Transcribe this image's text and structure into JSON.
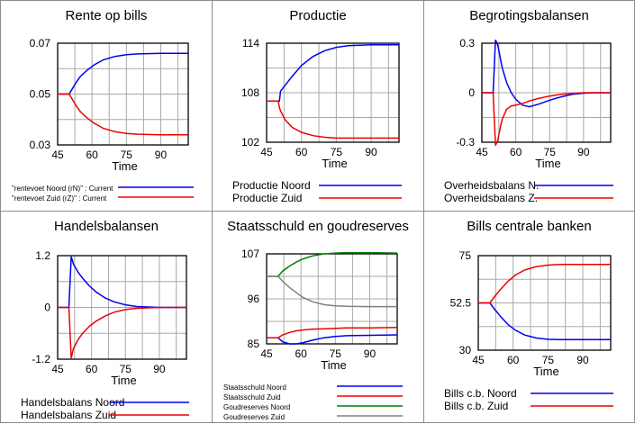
{
  "colors": {
    "blue": "#0000ee",
    "red": "#ee0000",
    "green": "#008000",
    "gray": "#808080",
    "grid": "#a8a8a8"
  },
  "chart_data": [
    {
      "type": "line",
      "title": "Rente op bills",
      "xlabel": "Time",
      "xlim": [
        45,
        102
      ],
      "xticks": [
        "45",
        "60",
        "75",
        "90"
      ],
      "ylim": [
        0.03,
        0.07
      ],
      "yticks": [
        "0.03",
        "0.05",
        "0.07"
      ],
      "legend_size": "small",
      "x": [
        45,
        50,
        51,
        53,
        55,
        58,
        61,
        65,
        70,
        75,
        80,
        90,
        102
      ],
      "series": [
        {
          "name": "\"rentevoet Noord (rN)\" : Current",
          "color": "blue",
          "values": [
            0.05,
            0.05,
            0.0515,
            0.0545,
            0.057,
            0.0595,
            0.0615,
            0.0635,
            0.0648,
            0.0655,
            0.0658,
            0.066,
            0.066
          ]
        },
        {
          "name": "\"rentevoet Zuid (rZ)\" : Current",
          "color": "red",
          "values": [
            0.05,
            0.05,
            0.0485,
            0.0455,
            0.043,
            0.0405,
            0.0385,
            0.0365,
            0.0352,
            0.0345,
            0.0342,
            0.034,
            0.034
          ]
        }
      ]
    },
    {
      "type": "line",
      "title": "Productie",
      "xlabel": "Time",
      "xlim": [
        45,
        102
      ],
      "xticks": [
        "45",
        "60",
        "75",
        "90"
      ],
      "ylim": [
        102,
        114
      ],
      "yticks": [
        "102",
        "108",
        "114"
      ],
      "legend_size": "normal",
      "x": [
        45,
        50,
        50.5,
        51,
        53,
        56,
        60,
        65,
        70,
        75,
        80,
        90,
        102
      ],
      "series": [
        {
          "name": "Productie Noord",
          "color": "blue",
          "values": [
            107,
            107,
            107,
            108.2,
            108.9,
            110,
            111.3,
            112.4,
            113.1,
            113.5,
            113.7,
            113.8,
            113.8
          ]
        },
        {
          "name": "Productie Zuid",
          "color": "red",
          "values": [
            107,
            107,
            106.2,
            105.8,
            104.7,
            103.8,
            103.2,
            102.8,
            102.6,
            102.5,
            102.5,
            102.5,
            102.5
          ]
        }
      ]
    },
    {
      "type": "line",
      "title": "Begrotingsbalansen",
      "xlabel": "Time",
      "xlim": [
        45,
        102
      ],
      "xticks": [
        "45",
        "60",
        "75",
        "90"
      ],
      "ylim": [
        -0.3,
        0.3
      ],
      "yticks": [
        "-0.3",
        "0",
        "0.3"
      ],
      "legend_size": "normal",
      "x": [
        45,
        50,
        51,
        52,
        53,
        54,
        56,
        58,
        60,
        63,
        66,
        70,
        75,
        80,
        85,
        90,
        95,
        102
      ],
      "series": [
        {
          "name": "Overheidsbalans N.",
          "color": "blue",
          "values": [
            0,
            0,
            0.32,
            0.29,
            0.22,
            0.15,
            0.06,
            0.0,
            -0.04,
            -0.075,
            -0.085,
            -0.07,
            -0.045,
            -0.025,
            -0.01,
            -0.003,
            0,
            0
          ]
        },
        {
          "name": "Overheidsbalans Z.",
          "color": "red",
          "values": [
            0,
            0,
            -0.32,
            -0.29,
            -0.22,
            -0.16,
            -0.1,
            -0.08,
            -0.075,
            -0.065,
            -0.05,
            -0.035,
            -0.02,
            -0.01,
            -0.004,
            0,
            0,
            0
          ]
        }
      ]
    },
    {
      "type": "line",
      "title": "Handelsbalansen",
      "xlabel": "Time",
      "xlim": [
        45,
        102
      ],
      "xticks": [
        "45",
        "60",
        "75",
        "90"
      ],
      "ylim": [
        -1.2,
        1.2
      ],
      "yticks": [
        "-1.2",
        "0",
        "1.2"
      ],
      "legend_size": "normal",
      "x": [
        45,
        50,
        50.5,
        51,
        52,
        54,
        56,
        59,
        62,
        66,
        70,
        75,
        80,
        90,
        102
      ],
      "series": [
        {
          "name": "Handelsbalans Noord",
          "color": "blue",
          "values": [
            0,
            0,
            0.6,
            1.18,
            1.0,
            0.82,
            0.68,
            0.5,
            0.36,
            0.22,
            0.13,
            0.06,
            0.02,
            0,
            0
          ]
        },
        {
          "name": "Handelsbalans Zuid",
          "color": "red",
          "values": [
            0,
            0,
            -0.6,
            -1.18,
            -0.95,
            -0.75,
            -0.6,
            -0.44,
            -0.32,
            -0.2,
            -0.11,
            -0.05,
            -0.02,
            0,
            0
          ]
        }
      ]
    },
    {
      "type": "line",
      "title": "Staatsschuld en goudreserves",
      "xlabel": "Time",
      "xlim": [
        45,
        102
      ],
      "xticks": [
        "45",
        "60",
        "75",
        "90"
      ],
      "ylim": [
        85,
        107
      ],
      "yticks": [
        "85",
        "96",
        "107"
      ],
      "legend_size": "small",
      "x": [
        45,
        50,
        52,
        55,
        58,
        61,
        65,
        70,
        75,
        80,
        90,
        102
      ],
      "series": [
        {
          "name": "Staatsschuld Noord",
          "color": "blue",
          "values": [
            86.5,
            86.5,
            85.5,
            85.0,
            85.0,
            85.3,
            85.9,
            86.5,
            86.8,
            87.0,
            87.1,
            87.2
          ]
        },
        {
          "name": "Staatsschuld Zuid",
          "color": "red",
          "values": [
            86.5,
            86.5,
            87.2,
            87.8,
            88.2,
            88.4,
            88.6,
            88.7,
            88.8,
            88.9,
            88.9,
            89.0
          ]
        },
        {
          "name": "Goudreserves Noord",
          "color": "green",
          "values": [
            101.5,
            101.5,
            102.8,
            104.0,
            105.0,
            105.8,
            106.5,
            107.0,
            107.2,
            107.3,
            107.3,
            107.2
          ]
        },
        {
          "name": "Goudreserves Zuid",
          "color": "gray",
          "values": [
            101.5,
            101.5,
            100.3,
            98.8,
            97.5,
            96.3,
            95.3,
            94.6,
            94.3,
            94.2,
            94.1,
            94.1
          ]
        }
      ]
    },
    {
      "type": "line",
      "title": "Bills centrale banken",
      "xlabel": "Time",
      "xlim": [
        45,
        102
      ],
      "xticks": [
        "45",
        "60",
        "75",
        "90"
      ],
      "ylim": [
        30,
        75
      ],
      "yticks": [
        "30",
        "52.5",
        "75"
      ],
      "legend_size": "normal",
      "x": [
        45,
        50,
        52,
        55,
        58,
        61,
        65,
        70,
        75,
        80,
        90,
        102
      ],
      "series": [
        {
          "name": "Bills c.b. Noord",
          "color": "blue",
          "values": [
            52.5,
            52.5,
            49.5,
            45.5,
            42.0,
            39.5,
            37.2,
            35.8,
            35.2,
            35.0,
            35.0,
            35.0
          ]
        },
        {
          "name": "Bills c.b. Zuid",
          "color": "red",
          "values": [
            52.5,
            52.5,
            55.5,
            59.5,
            63.0,
            65.8,
            68.2,
            69.8,
            70.5,
            70.8,
            70.8,
            70.8
          ]
        }
      ]
    }
  ]
}
